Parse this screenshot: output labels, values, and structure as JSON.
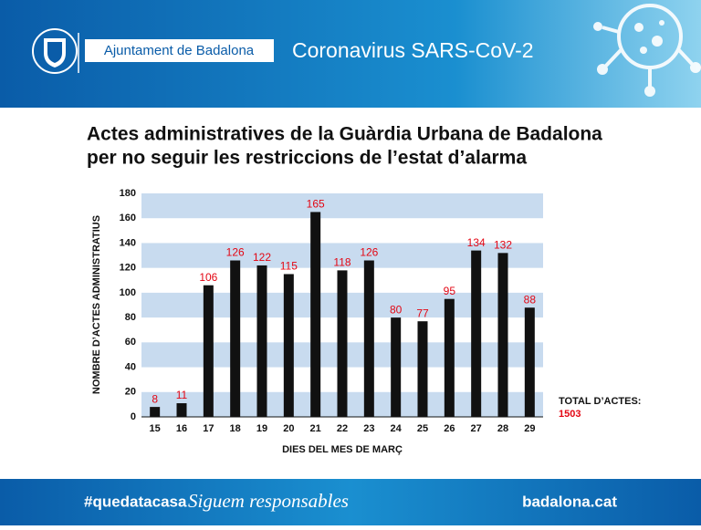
{
  "header": {
    "organization": "Ajuntament de Badalona",
    "topic": "Coronavirus SARS-CoV-2"
  },
  "chart_data": {
    "type": "bar",
    "title": [
      "Actes administratives de la Guàrdia Urbana de Badalona",
      "per no seguir les restriccions de l’estat d’alarma"
    ],
    "y_label": "NOMBRE D’ACTES ADMINISTRATIUS",
    "x_label": "DIES DEL MES DE MARÇ",
    "categories": [
      "15",
      "16",
      "17",
      "18",
      "19",
      "20",
      "21",
      "22",
      "23",
      "24",
      "25",
      "26",
      "27",
      "28",
      "29"
    ],
    "values": [
      8,
      11,
      106,
      126,
      122,
      115,
      165,
      118,
      126,
      80,
      77,
      95,
      134,
      132,
      88
    ],
    "color": "#111111",
    "label_color": "#e30613",
    "band_color": "#c8dbef",
    "ylim": [
      0,
      180
    ],
    "yticks": [
      0,
      20,
      40,
      60,
      80,
      100,
      120,
      140,
      160,
      180
    ],
    "total_label": "TOTAL D’ACTES:",
    "total_value": 1503
  },
  "footer": {
    "hashtag": "#quedatacasa",
    "slogan": "Siguem responsables",
    "website": "badalona.cat"
  }
}
